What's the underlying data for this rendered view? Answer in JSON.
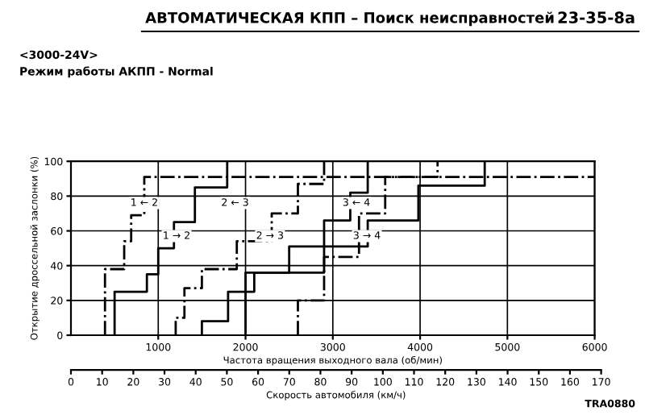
{
  "chart_data": {
    "type": "line",
    "title": "АВТОМАТИЧЕСКАЯ КПП – Поиск неисправностей",
    "subtitle": "<3000-24V>\nРежим работы АКПП - Normal",
    "xlabel": "Частота вращения выходного вала (об/мин)",
    "ylabel": "Открытие дроссельной заслонки (%)",
    "x2label": "Скорость автомобиля (км/ч)",
    "xlim": [
      0,
      6000
    ],
    "xticks": [
      1000,
      2000,
      3000,
      4000,
      5000,
      6000
    ],
    "ylim": [
      0,
      100
    ],
    "yticks": [
      0,
      20,
      40,
      60,
      80,
      100
    ],
    "x2lim": [
      0,
      170
    ],
    "x2ticks": [
      0,
      10,
      20,
      30,
      40,
      50,
      60,
      70,
      80,
      90,
      100,
      110,
      120,
      130,
      140,
      150,
      160,
      170
    ],
    "grid": true,
    "series": [
      {
        "color": "#000000",
        "line_style": "dashed",
        "x": [
          390,
          390,
          610,
          610,
          690,
          690,
          840,
          840,
          6000
        ],
        "values": [
          0,
          38,
          38,
          54,
          54,
          69,
          69,
          91,
          91
        ]
      },
      {
        "color": "#000000",
        "line_style": "solid",
        "x": [
          500,
          500,
          870,
          870,
          1000,
          1000,
          1180,
          1180,
          1420,
          1420,
          1790,
          1790
        ],
        "values": [
          0,
          25,
          25,
          35,
          35,
          50,
          50,
          65,
          65,
          85,
          85,
          100
        ]
      },
      {
        "color": "#000000",
        "line_style": "dashed",
        "x": [
          1200,
          1200,
          1300,
          1300,
          1500,
          1500,
          1900,
          1900,
          2300,
          2300,
          2600,
          2600,
          2900,
          2900
        ],
        "values": [
          0,
          10,
          10,
          27,
          27,
          38,
          38,
          54,
          54,
          70,
          70,
          87,
          87,
          100
        ]
      },
      {
        "color": "#000000",
        "line_style": "solid",
        "x": [
          1500,
          1500,
          1800,
          1800,
          2100,
          2100,
          2500,
          2500,
          2900,
          2900,
          3200,
          3200,
          3400,
          3400
        ],
        "values": [
          0,
          8,
          8,
          25,
          25,
          36,
          36,
          51,
          51,
          66,
          66,
          82,
          82,
          100
        ]
      },
      {
        "color": "#000000",
        "line_style": "dashed",
        "x": [
          2600,
          2600,
          2900,
          2900,
          3300,
          3300,
          3600,
          3600,
          4200,
          4200
        ],
        "values": [
          0,
          20,
          20,
          45,
          45,
          70,
          70,
          91,
          91,
          100
        ]
      },
      {
        "color": "#000000",
        "line_style": "solid",
        "x": [
          2000,
          2000,
          2900,
          2900,
          3400,
          3400,
          3980,
          3980,
          4740,
          4740
        ],
        "values": [
          0,
          36,
          36,
          51,
          51,
          66,
          66,
          86,
          86,
          100
        ]
      }
    ],
    "annotations": [
      "23-35-8а",
      "TRA0880",
      {
        "text": "1 ← 2",
        "x": 840,
        "y": 76
      },
      {
        "text": "1 → 2",
        "x": 1210,
        "y": 57
      },
      {
        "text": "2 ← 3",
        "x": 1880,
        "y": 76
      },
      {
        "text": "2 → 3",
        "x": 2280,
        "y": 57
      },
      {
        "text": "3 ← 4",
        "x": 3270,
        "y": 76
      },
      {
        "text": "3 → 4",
        "x": 3390,
        "y": 57
      }
    ]
  }
}
